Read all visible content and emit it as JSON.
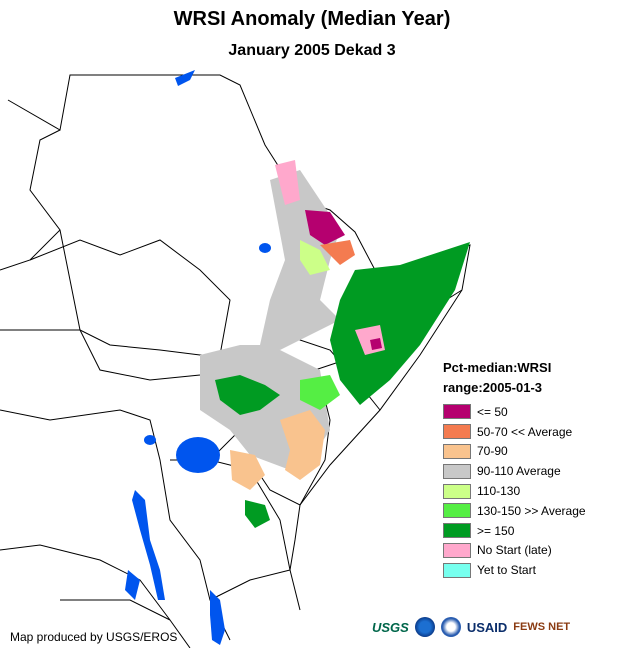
{
  "title": "WRSI Anomaly (Median Year)",
  "subtitle": "January 2005 Dekad 3",
  "legend": {
    "heading1": "Pct-median:WRSI",
    "heading2": "range:2005-01-3",
    "items": [
      {
        "label": "<= 50",
        "color": "#b5006f"
      },
      {
        "label": "50-70 << Average",
        "color": "#f47b50"
      },
      {
        "label": "70-90",
        "color": "#f9c38e"
      },
      {
        "label": "90-110 Average",
        "color": "#c8c8c8"
      },
      {
        "label": "110-130",
        "color": "#ccff88"
      },
      {
        "label": "130-150 >> Average",
        "color": "#55ee44"
      },
      {
        "label": ">= 150",
        "color": "#009b22"
      },
      {
        "label": "No Start (late)",
        "color": "#ffa8cc"
      },
      {
        "label": "Yet to Start",
        "color": "#77ffee"
      }
    ]
  },
  "credit": "Map produced by USGS/EROS",
  "logos": {
    "usgs": "USGS",
    "usaid": "USAID",
    "fews": "FEWS NET"
  }
}
